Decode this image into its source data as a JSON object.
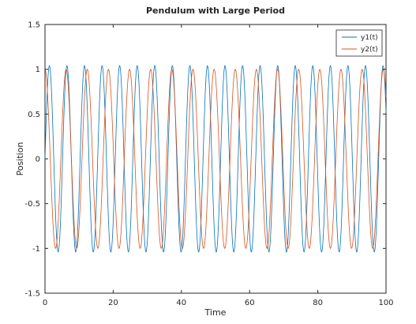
{
  "chart_data": {
    "type": "line",
    "title": "Pendulum with Large Period",
    "xlabel": "Time",
    "ylabel": "Position",
    "xlim": [
      0,
      100
    ],
    "ylim": [
      -1.5,
      1.5
    ],
    "xticks": [
      0,
      20,
      40,
      60,
      80,
      100
    ],
    "yticks": [
      -1.5,
      -1,
      -0.5,
      0,
      0.5,
      1,
      1.5
    ],
    "xtick_labels": [
      "0",
      "20",
      "40",
      "60",
      "80",
      "100"
    ],
    "ytick_labels": [
      "-1.5",
      "-1",
      "-0.5",
      "0",
      "0.5",
      "1",
      "1.5"
    ],
    "grid": false,
    "legend": {
      "position": "top-right"
    },
    "series": [
      {
        "name": "y1(t)",
        "color": "#0072bd",
        "model": {
          "amplitude": 1.04,
          "period": 5.15,
          "phase_deg": 0,
          "x_step": 0.1
        }
      },
      {
        "name": "y2(t)",
        "color": "#d95319",
        "model": {
          "amplitude": 1.0,
          "period": 6.2,
          "phase_deg": 90,
          "x_step": 0.1
        }
      }
    ]
  }
}
